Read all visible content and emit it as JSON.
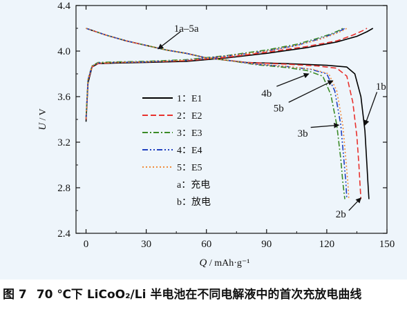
{
  "caption": {
    "figure_number": "图 7",
    "text": "70 ℃下 LiCoO₂/Li 半电池在不同电解液中的首次充放电曲线"
  },
  "chart_data": {
    "type": "line",
    "xlabel": "Q / mAh·g⁻¹",
    "ylabel": "U / V",
    "xlabel_var": "Q",
    "xlabel_unit": " / mAh·g⁻¹",
    "ylabel_var": "U",
    "ylabel_unit": " / V",
    "xlim": [
      -5,
      150
    ],
    "ylim": [
      2.4,
      4.4
    ],
    "xticks": [
      "0",
      "30",
      "60",
      "90",
      "120",
      "150"
    ],
    "yticks": [
      "2.4",
      "2.8",
      "3.2",
      "3.6",
      "4.0",
      "4.4"
    ],
    "grid": false,
    "legend": {
      "placement": "center-left",
      "entries": [
        {
          "label": "1：E1",
          "color": "#000000",
          "dash": "solid"
        },
        {
          "label": "2：E2",
          "color": "#e8302c",
          "dash": "dash"
        },
        {
          "label": "3：E3",
          "color": "#3a8a26",
          "dash": "dashdot"
        },
        {
          "label": "4：E4",
          "color": "#1f3fbf",
          "dash": "dashdotdot"
        },
        {
          "label": "5：E5",
          "color": "#f08a3a",
          "dash": "dot"
        }
      ],
      "notes": [
        "a：充电",
        "b：放电"
      ]
    },
    "series": [
      {
        "name": "1：E1",
        "color": "#000000",
        "dash": "solid",
        "charge": {
          "x": [
            0,
            1,
            3,
            6,
            15,
            30,
            50,
            70,
            90,
            110,
            125,
            135,
            140,
            143
          ],
          "y": [
            3.38,
            3.72,
            3.86,
            3.89,
            3.895,
            3.9,
            3.91,
            3.94,
            3.98,
            4.03,
            4.08,
            4.13,
            4.17,
            4.2
          ]
        },
        "discharge": {
          "x": [
            0,
            10,
            20,
            30,
            40,
            50,
            60,
            80,
            100,
            120,
            130,
            134,
            137,
            139,
            140,
            140.5,
            141
          ],
          "y": [
            4.2,
            4.14,
            4.09,
            4.05,
            4.01,
            3.98,
            3.94,
            3.9,
            3.89,
            3.875,
            3.86,
            3.8,
            3.6,
            3.3,
            3.0,
            2.85,
            2.7
          ]
        }
      },
      {
        "name": "2：E2",
        "color": "#e8302c",
        "dash": "dash",
        "charge": {
          "x": [
            0,
            1,
            3,
            6,
            15,
            30,
            50,
            70,
            90,
            110,
            125,
            133,
            138,
            140
          ],
          "y": [
            3.4,
            3.74,
            3.86,
            3.89,
            3.9,
            3.905,
            3.915,
            3.945,
            3.99,
            4.04,
            4.09,
            4.14,
            4.18,
            4.2
          ]
        },
        "discharge": {
          "x": [
            0,
            10,
            20,
            30,
            40,
            50,
            60,
            80,
            100,
            115,
            125,
            130,
            133,
            135,
            136,
            136.5,
            137
          ],
          "y": [
            4.2,
            4.14,
            4.09,
            4.05,
            4.01,
            3.98,
            3.94,
            3.9,
            3.885,
            3.87,
            3.85,
            3.78,
            3.55,
            3.25,
            3.0,
            2.85,
            2.7
          ]
        }
      },
      {
        "name": "3：E3",
        "color": "#3a8a26",
        "dash": "dashdot",
        "charge": {
          "x": [
            0,
            1,
            3,
            6,
            15,
            30,
            50,
            70,
            90,
            105,
            115,
            122,
            126,
            128
          ],
          "y": [
            3.42,
            3.76,
            3.87,
            3.9,
            3.905,
            3.91,
            3.925,
            3.96,
            4.01,
            4.06,
            4.11,
            4.15,
            4.18,
            4.2
          ]
        },
        "discharge": {
          "x": [
            0,
            10,
            20,
            30,
            40,
            50,
            60,
            70,
            85,
            100,
            110,
            118,
            122,
            125,
            127,
            128,
            129
          ],
          "y": [
            4.2,
            4.14,
            4.09,
            4.05,
            4.01,
            3.98,
            3.94,
            3.92,
            3.88,
            3.855,
            3.83,
            3.78,
            3.62,
            3.35,
            3.05,
            2.85,
            2.7
          ]
        }
      },
      {
        "name": "4：E4",
        "color": "#1f3fbf",
        "dash": "dashdotdot",
        "charge": {
          "x": [
            0,
            1,
            3,
            6,
            15,
            30,
            50,
            70,
            90,
            105,
            115,
            123,
            127,
            129
          ],
          "y": [
            3.41,
            3.75,
            3.87,
            3.895,
            3.9,
            3.905,
            3.92,
            3.955,
            4.0,
            4.05,
            4.1,
            4.15,
            4.18,
            4.2
          ]
        },
        "discharge": {
          "x": [
            0,
            10,
            20,
            30,
            40,
            50,
            60,
            70,
            85,
            100,
            112,
            120,
            124,
            127,
            128.5,
            129.5,
            130
          ],
          "y": [
            4.2,
            4.14,
            4.09,
            4.05,
            4.01,
            3.98,
            3.94,
            3.92,
            3.885,
            3.865,
            3.84,
            3.8,
            3.65,
            3.35,
            3.05,
            2.85,
            2.7
          ]
        }
      },
      {
        "name": "5：E5",
        "color": "#f08a3a",
        "dash": "dot",
        "charge": {
          "x": [
            0,
            1,
            3,
            6,
            15,
            30,
            50,
            70,
            90,
            105,
            116,
            124,
            128,
            130
          ],
          "y": [
            3.41,
            3.75,
            3.87,
            3.895,
            3.9,
            3.905,
            3.92,
            3.955,
            4.0,
            4.05,
            4.1,
            4.15,
            4.18,
            4.2
          ]
        },
        "discharge": {
          "x": [
            0,
            10,
            20,
            30,
            40,
            50,
            60,
            70,
            85,
            100,
            113,
            121,
            125,
            128,
            129.5,
            130.5,
            131
          ],
          "y": [
            4.2,
            4.14,
            4.09,
            4.05,
            4.01,
            3.98,
            3.94,
            3.92,
            3.885,
            3.865,
            3.84,
            3.8,
            3.65,
            3.35,
            3.05,
            2.85,
            2.7
          ]
        }
      }
    ],
    "annotations": [
      {
        "label": "1a–5a",
        "text_at": [
          50,
          4.2
        ],
        "arrow_from": [
          47,
          4.17
        ],
        "arrow_to": [
          36,
          4.02
        ]
      },
      {
        "label": "1b",
        "text_at": [
          147,
          3.69
        ],
        "arrow_from": [
          145,
          3.64
        ],
        "arrow_to": [
          139,
          3.35
        ]
      },
      {
        "label": "2b",
        "text_at": [
          127,
          2.57
        ],
        "arrow_from": [
          131,
          2.6
        ],
        "arrow_to": [
          137,
          2.71
        ]
      },
      {
        "label": "3b",
        "text_at": [
          108,
          3.28
        ],
        "arrow_from": [
          112,
          3.33
        ],
        "arrow_to": [
          126,
          3.35
        ]
      },
      {
        "label": "4b",
        "text_at": [
          90,
          3.63
        ],
        "arrow_from": [
          95,
          3.69
        ],
        "arrow_to": [
          111,
          3.8
        ]
      },
      {
        "label": "5b",
        "text_at": [
          96,
          3.5
        ],
        "arrow_from": [
          101,
          3.55
        ],
        "arrow_to": [
          123,
          3.74
        ]
      }
    ]
  }
}
